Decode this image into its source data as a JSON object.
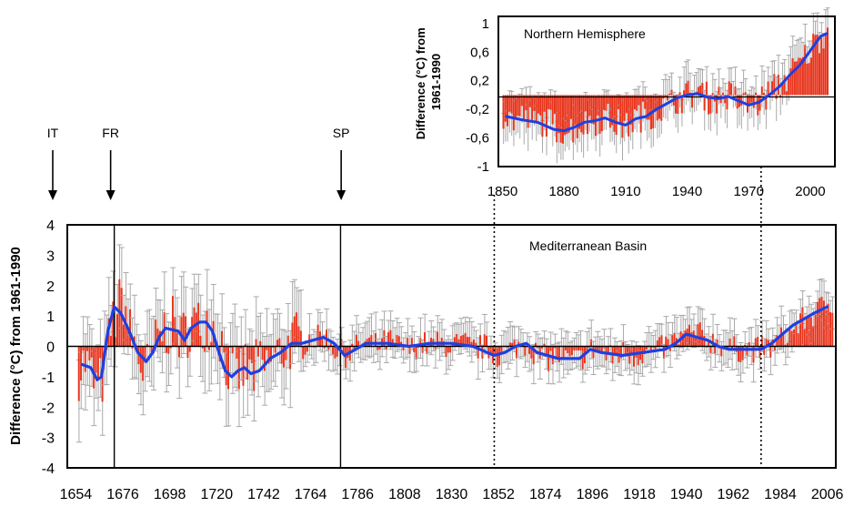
{
  "chart_data": [
    {
      "type": "bar",
      "annotation": "Mediterranean Basin",
      "ylabel": "Difference (°C) from 1961-1990",
      "xlim": [
        1650,
        2010
      ],
      "ylim": [
        -4,
        4
      ],
      "yticks": [
        4,
        3,
        2,
        1,
        0,
        -1,
        -2,
        -3,
        -4
      ],
      "xticks": [
        1654,
        1676,
        1698,
        1720,
        1742,
        1764,
        1786,
        1808,
        1830,
        1852,
        1874,
        1896,
        1918,
        1940,
        1962,
        1984,
        2006
      ],
      "grid": false,
      "colors": {
        "bars": "#e8341c",
        "errorbars": "#a9a9a9",
        "smooth": "#1f3fe0"
      },
      "markers": [
        {
          "label": "IT",
          "year": 1654
        },
        {
          "label": "FR",
          "year": 1672
        },
        {
          "label": "SP",
          "year": 1780
        }
      ],
      "vlines": [
        {
          "year": 1672,
          "style": "solid"
        },
        {
          "year": 1778,
          "style": "solid"
        },
        {
          "year": 1850,
          "style": "dotted"
        },
        {
          "year": 1975,
          "style": "dotted"
        }
      ],
      "bars_start_year": 1655,
      "anchors": [
        [
          1655,
          -0.8
        ],
        [
          1658,
          -0.5
        ],
        [
          1661,
          -1.0
        ],
        [
          1664,
          -1.4
        ],
        [
          1667,
          -0.9
        ],
        [
          1670,
          0.6
        ],
        [
          1673,
          1.2
        ],
        [
          1676,
          1.6
        ],
        [
          1679,
          0.4
        ],
        [
          1682,
          -0.2
        ],
        [
          1685,
          -0.8
        ],
        [
          1688,
          -0.7
        ],
        [
          1691,
          0.0
        ],
        [
          1694,
          0.5
        ],
        [
          1697,
          0.6
        ],
        [
          1700,
          0.7
        ],
        [
          1703,
          0.2
        ],
        [
          1706,
          0.6
        ],
        [
          1709,
          0.8
        ],
        [
          1712,
          0.6
        ],
        [
          1715,
          0.9
        ],
        [
          1718,
          0.7
        ],
        [
          1721,
          0.4
        ],
        [
          1724,
          -0.5
        ],
        [
          1727,
          -1.0
        ],
        [
          1730,
          -0.9
        ],
        [
          1733,
          -0.7
        ],
        [
          1736,
          -1.0
        ],
        [
          1739,
          -0.6
        ],
        [
          1742,
          -0.8
        ],
        [
          1745,
          -0.4
        ],
        [
          1748,
          -0.3
        ],
        [
          1751,
          -0.1
        ],
        [
          1754,
          0.1
        ],
        [
          1757,
          0.2
        ],
        [
          1760,
          0.0
        ],
        [
          1763,
          0.3
        ],
        [
          1766,
          0.2
        ],
        [
          1769,
          0.4
        ],
        [
          1772,
          0.2
        ],
        [
          1775,
          -0.1
        ],
        [
          1778,
          -0.2
        ],
        [
          1781,
          -0.3
        ],
        [
          1784,
          -0.1
        ],
        [
          1787,
          0.1
        ],
        [
          1790,
          0.1
        ],
        [
          1795,
          0.0
        ],
        [
          1800,
          0.2
        ],
        [
          1805,
          0.0
        ],
        [
          1810,
          -0.1
        ],
        [
          1815,
          0.1
        ],
        [
          1820,
          0.0
        ],
        [
          1825,
          0.1
        ],
        [
          1830,
          0.0
        ],
        [
          1835,
          0.1
        ],
        [
          1840,
          -0.1
        ],
        [
          1845,
          0.0
        ],
        [
          1850,
          -0.3
        ],
        [
          1855,
          -0.2
        ],
        [
          1860,
          0.0
        ],
        [
          1865,
          0.1
        ],
        [
          1870,
          -0.3
        ],
        [
          1875,
          -0.4
        ],
        [
          1880,
          -0.3
        ],
        [
          1885,
          -0.5
        ],
        [
          1890,
          -0.4
        ],
        [
          1895,
          -0.1
        ],
        [
          1900,
          -0.2
        ],
        [
          1905,
          -0.4
        ],
        [
          1910,
          -0.2
        ],
        [
          1915,
          -0.3
        ],
        [
          1920,
          -0.2
        ],
        [
          1925,
          -0.2
        ],
        [
          1930,
          0.0
        ],
        [
          1935,
          0.2
        ],
        [
          1940,
          0.4
        ],
        [
          1945,
          0.4
        ],
        [
          1950,
          0.2
        ],
        [
          1955,
          0.1
        ],
        [
          1960,
          -0.1
        ],
        [
          1965,
          -0.1
        ],
        [
          1970,
          -0.1
        ],
        [
          1975,
          -0.1
        ],
        [
          1980,
          0.0
        ],
        [
          1985,
          0.3
        ],
        [
          1990,
          0.6
        ],
        [
          1995,
          0.9
        ],
        [
          2000,
          1.1
        ],
        [
          2005,
          1.4
        ],
        [
          2008,
          1.5
        ]
      ],
      "smooth": [
        [
          1657,
          -0.6
        ],
        [
          1661,
          -0.7
        ],
        [
          1664,
          -1.1
        ],
        [
          1666,
          -1.0
        ],
        [
          1669,
          0.5
        ],
        [
          1672,
          1.3
        ],
        [
          1675,
          1.1
        ],
        [
          1679,
          0.5
        ],
        [
          1683,
          -0.2
        ],
        [
          1687,
          -0.5
        ],
        [
          1690,
          -0.2
        ],
        [
          1693,
          0.3
        ],
        [
          1696,
          0.6
        ],
        [
          1702,
          0.5
        ],
        [
          1705,
          0.2
        ],
        [
          1708,
          0.6
        ],
        [
          1712,
          0.8
        ],
        [
          1715,
          0.8
        ],
        [
          1718,
          0.5
        ],
        [
          1721,
          -0.2
        ],
        [
          1724,
          -0.8
        ],
        [
          1727,
          -1.0
        ],
        [
          1730,
          -0.8
        ],
        [
          1733,
          -0.7
        ],
        [
          1736,
          -0.9
        ],
        [
          1740,
          -0.8
        ],
        [
          1745,
          -0.4
        ],
        [
          1750,
          -0.2
        ],
        [
          1755,
          0.1
        ],
        [
          1760,
          0.1
        ],
        [
          1765,
          0.2
        ],
        [
          1770,
          0.3
        ],
        [
          1775,
          0.1
        ],
        [
          1780,
          -0.3
        ],
        [
          1785,
          -0.1
        ],
        [
          1790,
          0.1
        ],
        [
          1800,
          0.1
        ],
        [
          1810,
          0.0
        ],
        [
          1820,
          0.1
        ],
        [
          1830,
          0.1
        ],
        [
          1840,
          0.0
        ],
        [
          1850,
          -0.3
        ],
        [
          1855,
          -0.2
        ],
        [
          1860,
          0.0
        ],
        [
          1865,
          0.1
        ],
        [
          1870,
          -0.2
        ],
        [
          1880,
          -0.4
        ],
        [
          1890,
          -0.4
        ],
        [
          1895,
          -0.1
        ],
        [
          1900,
          -0.2
        ],
        [
          1910,
          -0.3
        ],
        [
          1920,
          -0.2
        ],
        [
          1930,
          -0.1
        ],
        [
          1935,
          0.1
        ],
        [
          1940,
          0.4
        ],
        [
          1945,
          0.3
        ],
        [
          1950,
          0.2
        ],
        [
          1955,
          0.0
        ],
        [
          1960,
          -0.1
        ],
        [
          1965,
          -0.1
        ],
        [
          1970,
          -0.1
        ],
        [
          1975,
          -0.1
        ],
        [
          1980,
          0.1
        ],
        [
          1985,
          0.4
        ],
        [
          1990,
          0.7
        ],
        [
          1995,
          0.9
        ],
        [
          2000,
          1.1
        ],
        [
          2006,
          1.3
        ]
      ]
    },
    {
      "type": "bar",
      "annotation": "Northern Hemisphere",
      "ylabel": "Difference (°C) from 1961-1990",
      "xlim": [
        1848,
        2012
      ],
      "ylim": [
        -1,
        1.1
      ],
      "yticks": [
        1,
        0.6,
        0.2,
        -0.2,
        -0.6,
        -1
      ],
      "ytick_labels": [
        "1",
        "0,6",
        "0,2",
        "-0,2",
        "-0,6",
        "-1"
      ],
      "xticks": [
        1850,
        1880,
        1910,
        1940,
        1970,
        2000
      ],
      "grid": false,
      "colors": {
        "bars": "#e8341c",
        "errorbars": "#a9a9a9",
        "smooth": "#1f3fe0"
      },
      "bars_start_year": 1850,
      "anchors": [
        [
          1850,
          -0.3
        ],
        [
          1855,
          -0.35
        ],
        [
          1860,
          -0.3
        ],
        [
          1865,
          -0.4
        ],
        [
          1870,
          -0.35
        ],
        [
          1875,
          -0.45
        ],
        [
          1880,
          -0.5
        ],
        [
          1885,
          -0.45
        ],
        [
          1890,
          -0.4
        ],
        [
          1895,
          -0.35
        ],
        [
          1900,
          -0.3
        ],
        [
          1905,
          -0.4
        ],
        [
          1910,
          -0.45
        ],
        [
          1915,
          -0.3
        ],
        [
          1920,
          -0.3
        ],
        [
          1925,
          -0.2
        ],
        [
          1930,
          -0.15
        ],
        [
          1935,
          -0.05
        ],
        [
          1940,
          0.0
        ],
        [
          1945,
          0.05
        ],
        [
          1950,
          -0.05
        ],
        [
          1955,
          -0.05
        ],
        [
          1960,
          0.0
        ],
        [
          1965,
          -0.1
        ],
        [
          1970,
          -0.15
        ],
        [
          1975,
          -0.1
        ],
        [
          1980,
          0.05
        ],
        [
          1985,
          0.15
        ],
        [
          1990,
          0.3
        ],
        [
          1995,
          0.45
        ],
        [
          2000,
          0.65
        ],
        [
          2005,
          0.85
        ],
        [
          2008,
          0.9
        ]
      ],
      "smooth": [
        [
          1852,
          -0.3
        ],
        [
          1860,
          -0.35
        ],
        [
          1867,
          -0.38
        ],
        [
          1875,
          -0.48
        ],
        [
          1880,
          -0.5
        ],
        [
          1885,
          -0.45
        ],
        [
          1890,
          -0.38
        ],
        [
          1895,
          -0.36
        ],
        [
          1900,
          -0.32
        ],
        [
          1905,
          -0.38
        ],
        [
          1910,
          -0.42
        ],
        [
          1915,
          -0.33
        ],
        [
          1920,
          -0.3
        ],
        [
          1925,
          -0.2
        ],
        [
          1930,
          -0.12
        ],
        [
          1935,
          -0.04
        ],
        [
          1940,
          0.0
        ],
        [
          1945,
          0.02
        ],
        [
          1950,
          -0.03
        ],
        [
          1955,
          -0.05
        ],
        [
          1960,
          -0.02
        ],
        [
          1965,
          -0.08
        ],
        [
          1970,
          -0.14
        ],
        [
          1975,
          -0.1
        ],
        [
          1980,
          0.0
        ],
        [
          1985,
          0.12
        ],
        [
          1990,
          0.28
        ],
        [
          1995,
          0.42
        ],
        [
          2000,
          0.62
        ],
        [
          2005,
          0.82
        ],
        [
          2008,
          0.86
        ]
      ]
    }
  ]
}
